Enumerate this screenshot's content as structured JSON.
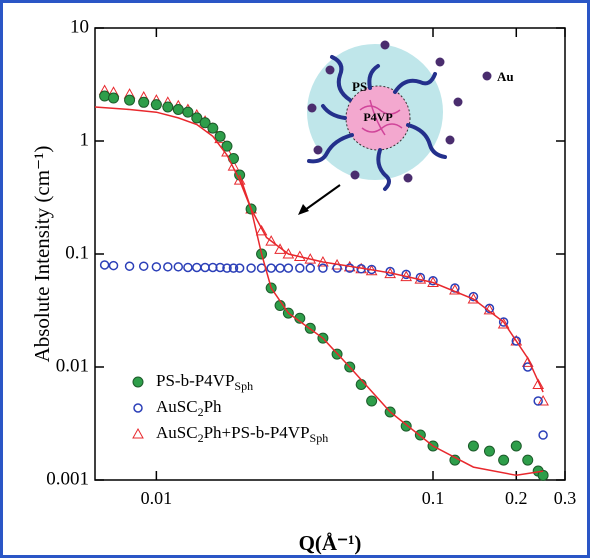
{
  "chart_data": {
    "type": "scatter",
    "x_label": "Q(Å⁻¹)",
    "y_label": "Absolute Intensity (cm⁻¹)",
    "log_x": true,
    "log_y": true,
    "xlim": [
      0.006,
      0.3
    ],
    "ylim": [
      0.001,
      10
    ],
    "xticks": [
      0.01,
      0.1,
      0.2,
      0.3
    ],
    "yticks": [
      0.001,
      0.01,
      0.1,
      1,
      10
    ],
    "legend": "lower left",
    "x": [
      0.0065,
      0.007,
      0.008,
      0.009,
      0.01,
      0.011,
      0.012,
      0.013,
      0.014,
      0.015,
      0.016,
      0.017,
      0.018,
      0.019,
      0.02,
      0.022,
      0.024,
      0.026,
      0.028,
      0.03,
      0.033,
      0.036,
      0.04,
      0.045,
      0.05,
      0.055,
      0.06,
      0.07,
      0.08,
      0.09,
      0.1,
      0.12,
      0.14,
      0.16,
      0.18,
      0.2,
      0.22,
      0.24,
      0.25
    ],
    "series": [
      {
        "name": "PS-b-P4VPSph",
        "color": "#2e9e4a",
        "marker": "filled-circle",
        "values": [
          2.5,
          2.4,
          2.3,
          2.2,
          2.1,
          2.0,
          1.9,
          1.8,
          1.6,
          1.45,
          1.3,
          1.1,
          0.9,
          0.7,
          0.5,
          0.25,
          0.1,
          0.05,
          0.035,
          0.03,
          0.027,
          0.022,
          0.018,
          0.013,
          0.01,
          0.007,
          0.005,
          0.004,
          0.003,
          0.0025,
          0.002,
          0.0015,
          0.002,
          0.0018,
          0.0015,
          0.002,
          0.0015,
          0.0012,
          0.0011
        ]
      },
      {
        "name": "AuSC2Ph",
        "color": "#2b3fb8",
        "marker": "open-circle",
        "values": [
          0.08,
          0.079,
          0.078,
          0.078,
          0.077,
          0.077,
          0.077,
          0.076,
          0.076,
          0.076,
          0.076,
          0.076,
          0.075,
          0.075,
          0.075,
          0.075,
          0.075,
          0.075,
          0.075,
          0.075,
          0.075,
          0.075,
          0.075,
          0.075,
          0.075,
          0.074,
          0.073,
          0.07,
          0.066,
          0.062,
          0.058,
          0.05,
          0.042,
          0.033,
          0.025,
          0.017,
          0.01,
          0.005,
          0.0025
        ]
      },
      {
        "name": "AuSC2Ph+PS-b-P4VPSph",
        "color": "#e8282d",
        "marker": "open-triangle",
        "values": [
          2.8,
          2.7,
          2.6,
          2.45,
          2.3,
          2.2,
          2.05,
          1.9,
          1.7,
          1.5,
          1.3,
          1.05,
          0.8,
          0.6,
          0.45,
          0.25,
          0.16,
          0.13,
          0.11,
          0.1,
          0.095,
          0.09,
          0.085,
          0.08,
          0.077,
          0.074,
          0.071,
          0.067,
          0.063,
          0.06,
          0.056,
          0.048,
          0.04,
          0.032,
          0.024,
          0.017,
          0.011,
          0.007,
          0.005
        ]
      }
    ],
    "fits": [
      {
        "color": "#e8282d",
        "x": [
          0.006,
          0.008,
          0.01,
          0.012,
          0.014,
          0.016,
          0.018,
          0.02,
          0.022,
          0.025,
          0.03,
          0.04,
          0.05,
          0.07,
          0.1,
          0.14,
          0.18,
          0.22,
          0.25
        ],
        "values": [
          2.0,
          1.9,
          1.8,
          1.6,
          1.4,
          1.1,
          0.75,
          0.45,
          0.25,
          0.14,
          0.1,
          0.085,
          0.078,
          0.068,
          0.056,
          0.04,
          0.025,
          0.012,
          0.006
        ]
      },
      {
        "color": "#e8282d",
        "x": [
          0.02,
          0.022,
          0.024,
          0.026,
          0.03,
          0.04,
          0.05,
          0.07,
          0.1,
          0.14,
          0.2,
          0.25
        ],
        "values": [
          0.5,
          0.25,
          0.1,
          0.05,
          0.03,
          0.018,
          0.01,
          0.004,
          0.002,
          0.0013,
          0.0011,
          0.0012
        ]
      }
    ],
    "inset_labels": [
      "PS",
      "P4VP",
      "Au"
    ]
  }
}
